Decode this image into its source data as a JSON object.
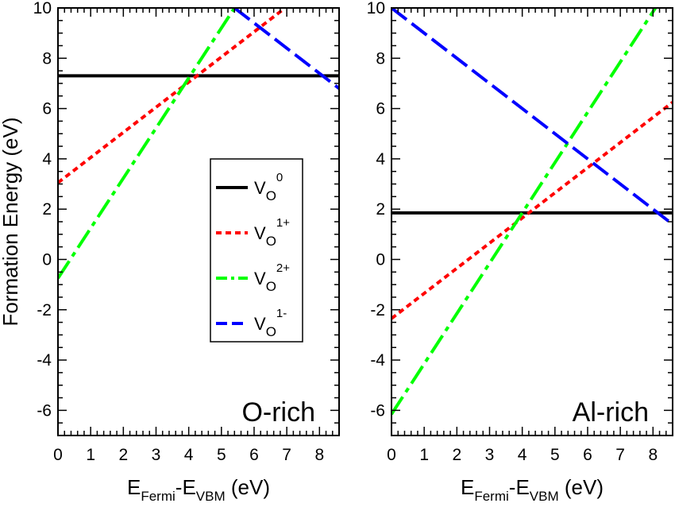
{
  "chart_data": [
    {
      "type": "line",
      "panel_label": "O-rich",
      "ylabel": "Formation Energy (eV)",
      "xlabel": {
        "main1": "E",
        "sub1": "Fermi",
        "mid": "-E",
        "sub2": "VBM",
        "tail": " (eV)"
      },
      "xlim": [
        0,
        8.6
      ],
      "ylim": [
        -7,
        10
      ],
      "x_ticks": [
        "0",
        "1",
        "2",
        "3",
        "4",
        "5",
        "6",
        "7",
        "8"
      ],
      "y_ticks": [
        "-6",
        "-4",
        "-2",
        "0",
        "2",
        "4",
        "6",
        "8",
        "10"
      ],
      "grid": false,
      "series": [
        {
          "key": "v0",
          "x": [
            0,
            8.6
          ],
          "y": [
            7.3,
            7.3
          ],
          "color": "#000000",
          "style": "solid"
        },
        {
          "key": "v1p",
          "x": [
            0,
            6.9
          ],
          "y": [
            3.05,
            9.95
          ],
          "color": "#ff0000",
          "style": "dotted"
        },
        {
          "key": "v2p",
          "x": [
            0,
            5.4
          ],
          "y": [
            -0.75,
            10.0
          ],
          "color": "#00ff00",
          "style": "dash-dot"
        },
        {
          "key": "v1m",
          "x": [
            5.4,
            8.6
          ],
          "y": [
            10.0,
            6.8
          ],
          "color": "#0000ff",
          "style": "long-dash"
        }
      ],
      "legend": {
        "placement": "center-right",
        "entries": [
          {
            "key": "v0",
            "base": "V",
            "sub": "O",
            "sup": "0"
          },
          {
            "key": "v1p",
            "base": "V",
            "sub": "O",
            "sup": "1+"
          },
          {
            "key": "v2p",
            "base": "V",
            "sub": "O",
            "sup": "2+"
          },
          {
            "key": "v1m",
            "base": "V",
            "sub": "O",
            "sup": "1-"
          }
        ]
      }
    },
    {
      "type": "line",
      "panel_label": "Al-rich",
      "xlabel": {
        "main1": "E",
        "sub1": "Fermi",
        "mid": "-E",
        "sub2": "VBM",
        "tail": " (eV)"
      },
      "xlim": [
        0,
        8.6
      ],
      "ylim": [
        -7,
        10
      ],
      "x_ticks": [
        "0",
        "1",
        "2",
        "3",
        "4",
        "5",
        "6",
        "7",
        "8"
      ],
      "y_ticks": [
        "-6",
        "-4",
        "-2",
        "0",
        "2",
        "4",
        "6",
        "8",
        "10"
      ],
      "grid": false,
      "series": [
        {
          "key": "v0",
          "x": [
            0,
            8.6
          ],
          "y": [
            1.85,
            1.85
          ],
          "color": "#000000",
          "style": "solid"
        },
        {
          "key": "v1p",
          "x": [
            0,
            8.6
          ],
          "y": [
            -2.35,
            6.25
          ],
          "color": "#ff0000",
          "style": "dotted"
        },
        {
          "key": "v2p",
          "x": [
            0,
            8.1
          ],
          "y": [
            -6.15,
            10.05
          ],
          "color": "#00ff00",
          "style": "dash-dot"
        },
        {
          "key": "v1m",
          "x": [
            0,
            8.6
          ],
          "y": [
            10.0,
            1.4
          ],
          "color": "#0000ff",
          "style": "long-dash"
        }
      ]
    }
  ]
}
